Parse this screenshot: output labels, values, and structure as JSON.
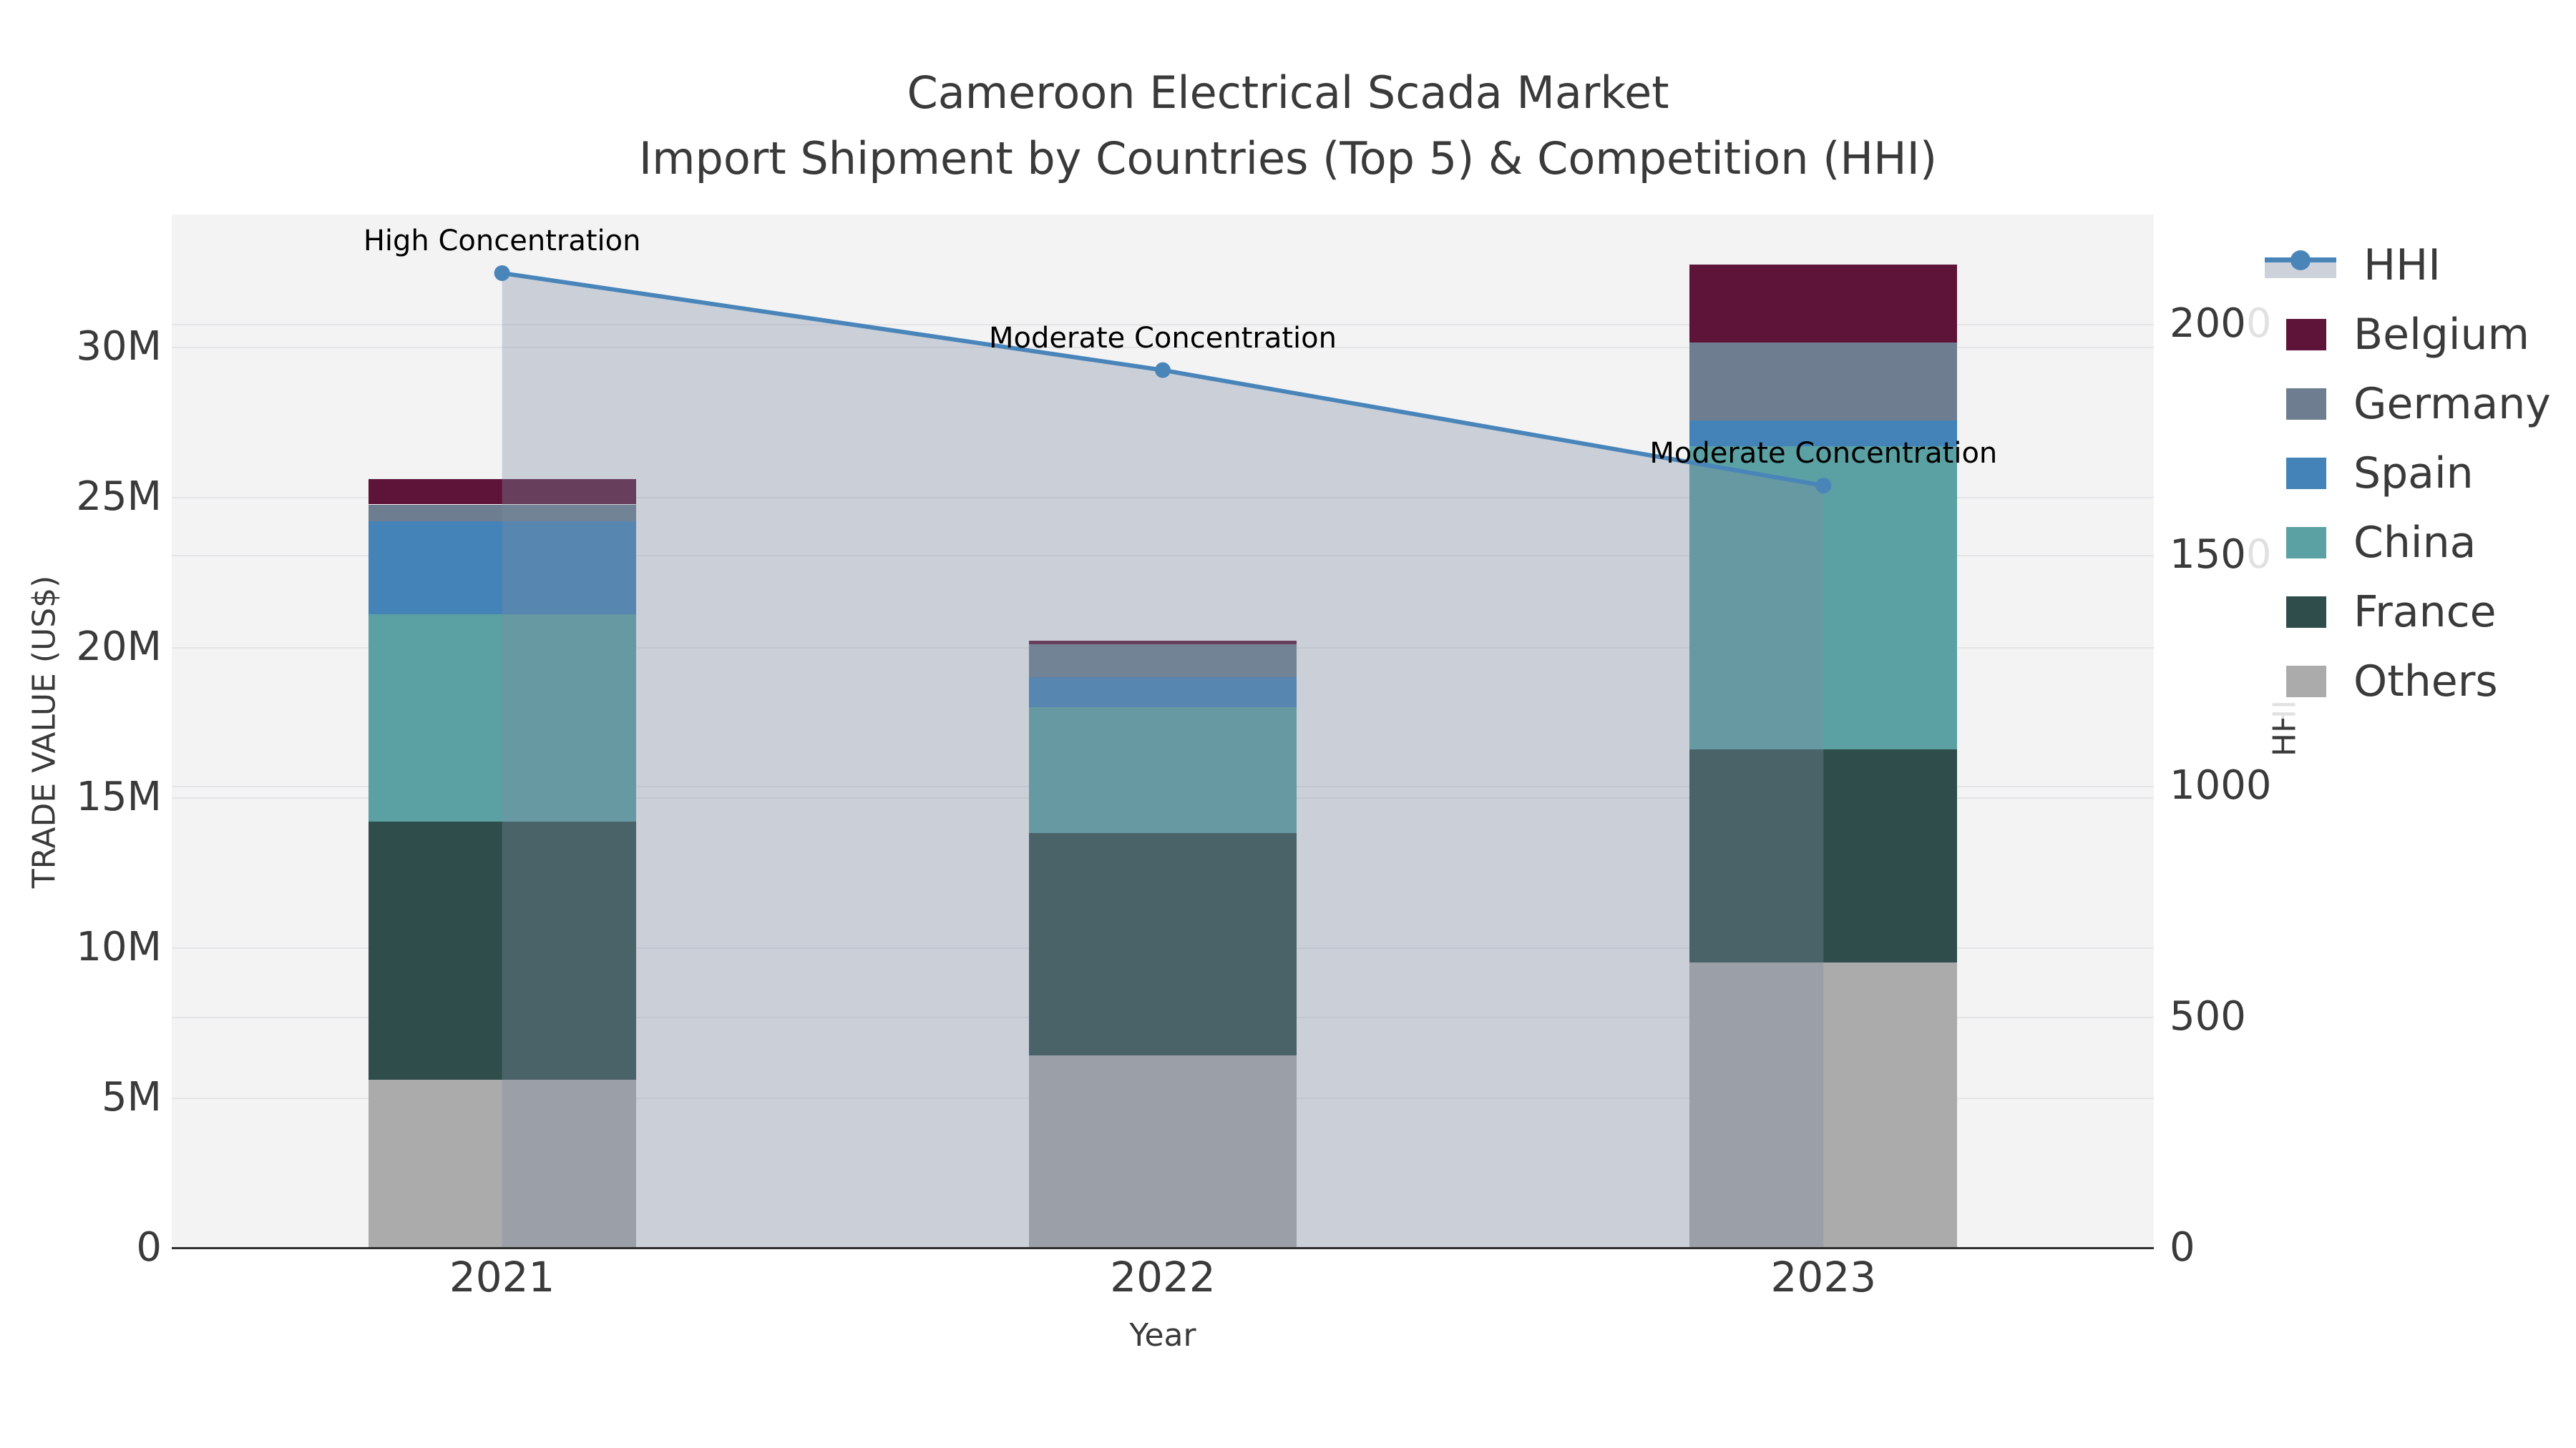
{
  "title": {
    "line1": "Cameroon Electrical Scada Market",
    "line2": "Import Shipment by Countries (Top 5) & Competition (HHI)"
  },
  "chart_data": {
    "type": "bar",
    "subtype": "stacked-bar-with-line",
    "categories": [
      "2021",
      "2022",
      "2023"
    ],
    "series": [
      {
        "name": "Others",
        "color": "#ababab",
        "values": [
          5.6,
          6.4,
          9.5
        ]
      },
      {
        "name": "France",
        "color": "#2e4d4b",
        "values": [
          8.6,
          7.4,
          7.1
        ]
      },
      {
        "name": "China",
        "color": "#5ba0a2",
        "values": [
          6.9,
          4.2,
          10.1
        ]
      },
      {
        "name": "Spain",
        "color": "#4383b7",
        "values": [
          3.1,
          1.0,
          0.85
        ]
      },
      {
        "name": "Germany",
        "color": "#6e7e90",
        "values": [
          0.55,
          1.1,
          2.6
        ]
      },
      {
        "name": "Belgium",
        "color": "#5d1438",
        "values": [
          0.85,
          0.12,
          2.6
        ]
      }
    ],
    "line_series": {
      "name": "HHI",
      "color": "#4a85ba",
      "fill_color": "rgba(125,140,163,0.35)",
      "values": [
        2110,
        1900,
        1650
      ]
    },
    "annotations": [
      {
        "category": "2021",
        "text": "High Concentration"
      },
      {
        "category": "2022",
        "text": "Moderate Concentration"
      },
      {
        "category": "2023",
        "text": "Moderate Concentration"
      }
    ],
    "xlabel": "Year",
    "ylabel_left": "TRADE VALUE (US$)",
    "ylabel_right": "HHI",
    "left_axis": {
      "ticks": [
        {
          "label": "0",
          "v": 0
        },
        {
          "label": "5M",
          "v": 5
        },
        {
          "label": "10M",
          "v": 10
        },
        {
          "label": "15M",
          "v": 15
        },
        {
          "label": "20M",
          "v": 20
        },
        {
          "label": "25M",
          "v": 25
        },
        {
          "label": "30M",
          "v": 30
        }
      ],
      "units": "millions USD"
    },
    "right_axis": {
      "ticks": [
        {
          "label": "0",
          "v": 0
        },
        {
          "label": "500",
          "v": 500
        },
        {
          "label": "1000",
          "v": 1000
        },
        {
          "label": "1500",
          "v": 1500
        },
        {
          "label": "2000",
          "v": 2000
        }
      ]
    },
    "legend_order": [
      "HHI",
      "Belgium",
      "Germany",
      "Spain",
      "China",
      "France",
      "Others"
    ],
    "grid": true,
    "legend_position": "top-right",
    "colors": {
      "plot_bg": "#f3f3f4",
      "grid": "#e5e5e8",
      "axis_line": "#2f2f2f",
      "text": "#3a3a3a",
      "hhi_band_swatch": "#cdd2da"
    }
  }
}
